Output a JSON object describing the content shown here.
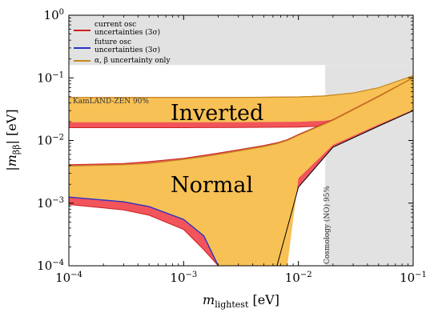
{
  "chart_data": {
    "type": "area",
    "x_scale": "log",
    "y_scale": "log",
    "xlim": [
      0.0001,
      0.1
    ],
    "ylim": [
      0.0001,
      1
    ],
    "xlabel": "m_lightest [eV]",
    "ylabel": "|m_ββ| [eV]",
    "x_ticks": [
      {
        "value": 0.0001,
        "base": "10",
        "exp": "−4"
      },
      {
        "value": 0.001,
        "base": "10",
        "exp": "−3"
      },
      {
        "value": 0.01,
        "base": "10",
        "exp": "−2"
      },
      {
        "value": 0.1,
        "base": "10",
        "exp": "−1"
      }
    ],
    "y_ticks": [
      {
        "value": 0.0001,
        "base": "10",
        "exp": "−4"
      },
      {
        "value": 0.001,
        "base": "10",
        "exp": "−3"
      },
      {
        "value": 0.01,
        "base": "10",
        "exp": "−2"
      },
      {
        "value": 0.1,
        "base": "10",
        "exp": "−1"
      },
      {
        "value": 1,
        "base": "10",
        "exp": "0"
      }
    ],
    "region_labels": {
      "inverted": "Inverted",
      "normal": "Normal"
    },
    "exclusions": {
      "kamland": {
        "label": "KamLAND-ZEN 90%",
        "limit_mbb": 0.16
      },
      "cosmology": {
        "label": "Cosmology (NO) 95%",
        "limit_mlightest": 0.017
      }
    },
    "legend": {
      "position": "top-left",
      "items": [
        {
          "label1": "current osc",
          "label2": "uncertainties (3σ)",
          "color": "#cc2222"
        },
        {
          "label1": "future osc",
          "label2": "uncertainties (3σ)",
          "color": "#2a32c8"
        },
        {
          "label1": "α, β uncertainty only",
          "label2": "",
          "color": "#c08a1e"
        }
      ]
    },
    "series": [
      {
        "band": "inverted",
        "x": [
          0.0001,
          0.001,
          0.003,
          0.01,
          0.017,
          0.03,
          0.05,
          0.1
        ],
        "outer_upper": [
          0.0495,
          0.0495,
          0.0496,
          0.0505,
          0.0523,
          0.0583,
          0.0706,
          0.1092
        ],
        "inner_upper": [
          0.0485,
          0.0485,
          0.0486,
          0.0495,
          0.0513,
          0.0573,
          0.0696,
          0.1082
        ],
        "inner_lower": [
          0.0195,
          0.0195,
          0.0196,
          0.0199,
          0.0206,
          0.0234,
          0.0297,
          0.0495
        ],
        "outer_lower": [
          0.016,
          0.016,
          0.0161,
          0.0164,
          0.0171,
          0.0199,
          0.0262,
          0.046
        ]
      },
      {
        "band": "normal",
        "x": [
          0.0001,
          0.0003,
          0.0005,
          0.001,
          0.0015,
          0.002,
          0.003,
          0.005,
          0.0065,
          0.008,
          0.01,
          0.02,
          0.05,
          0.1
        ],
        "outer_upper": [
          0.0041,
          0.0043,
          0.0046,
          0.0052,
          0.0058,
          0.0063,
          0.0071,
          0.0083,
          0.0092,
          0.0103,
          0.0125,
          0.0215,
          0.051,
          0.101
        ],
        "inner_upper": [
          0.0039,
          0.0041,
          0.0043,
          0.005,
          0.0055,
          0.006,
          0.0068,
          0.008,
          0.0089,
          0.01,
          0.0121,
          0.021,
          0.05,
          0.1
        ],
        "inner_lower": [
          0.00125,
          0.00105,
          0.00088,
          0.00055,
          0.0003,
          0.0001,
          null,
          null,
          null,
          0.0001,
          0.0025,
          0.0085,
          0.018,
          0.031
        ],
        "outer_lower": [
          0.00095,
          0.00078,
          0.00064,
          0.00038,
          0.00018,
          0.0001,
          null,
          null,
          0.0001,
          0.0004,
          0.0018,
          0.0078,
          0.017,
          0.03
        ]
      }
    ]
  }
}
